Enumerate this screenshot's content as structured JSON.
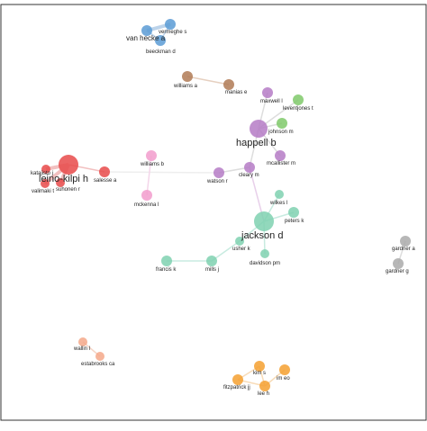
{
  "nodes": [
    {
      "label": "vermeghe s"
    },
    {
      "label": "van hecke a"
    },
    {
      "label": "beeckman d"
    },
    {
      "label": "williams a"
    },
    {
      "label": "manias e"
    },
    {
      "label": "maxwell l"
    },
    {
      "label": "leventjones t"
    },
    {
      "label": "johnson m"
    },
    {
      "label": "happell b"
    },
    {
      "label": "mcallister m"
    },
    {
      "label": "cleary m"
    },
    {
      "label": "watson r"
    },
    {
      "label": "williams b"
    },
    {
      "label": "mckenna l"
    },
    {
      "label": "katajisto j"
    },
    {
      "label": "leino-kilpi h"
    },
    {
      "label": "salesse a"
    },
    {
      "label": "valimaki t"
    },
    {
      "label": "suhonen r"
    },
    {
      "label": "wilkes l"
    },
    {
      "label": "peters k"
    },
    {
      "label": "jackson d"
    },
    {
      "label": "usher k"
    },
    {
      "label": "davidson pm"
    },
    {
      "label": "francis k"
    },
    {
      "label": "mills j"
    },
    {
      "label": "gardner a"
    },
    {
      "label": "gardner g"
    },
    {
      "label": "wallin l"
    },
    {
      "label": "estabrooks ca"
    },
    {
      "label": "kim s"
    },
    {
      "label": "im eo"
    },
    {
      "label": "fitzpatrick jj"
    },
    {
      "label": "lee h"
    }
  ]
}
